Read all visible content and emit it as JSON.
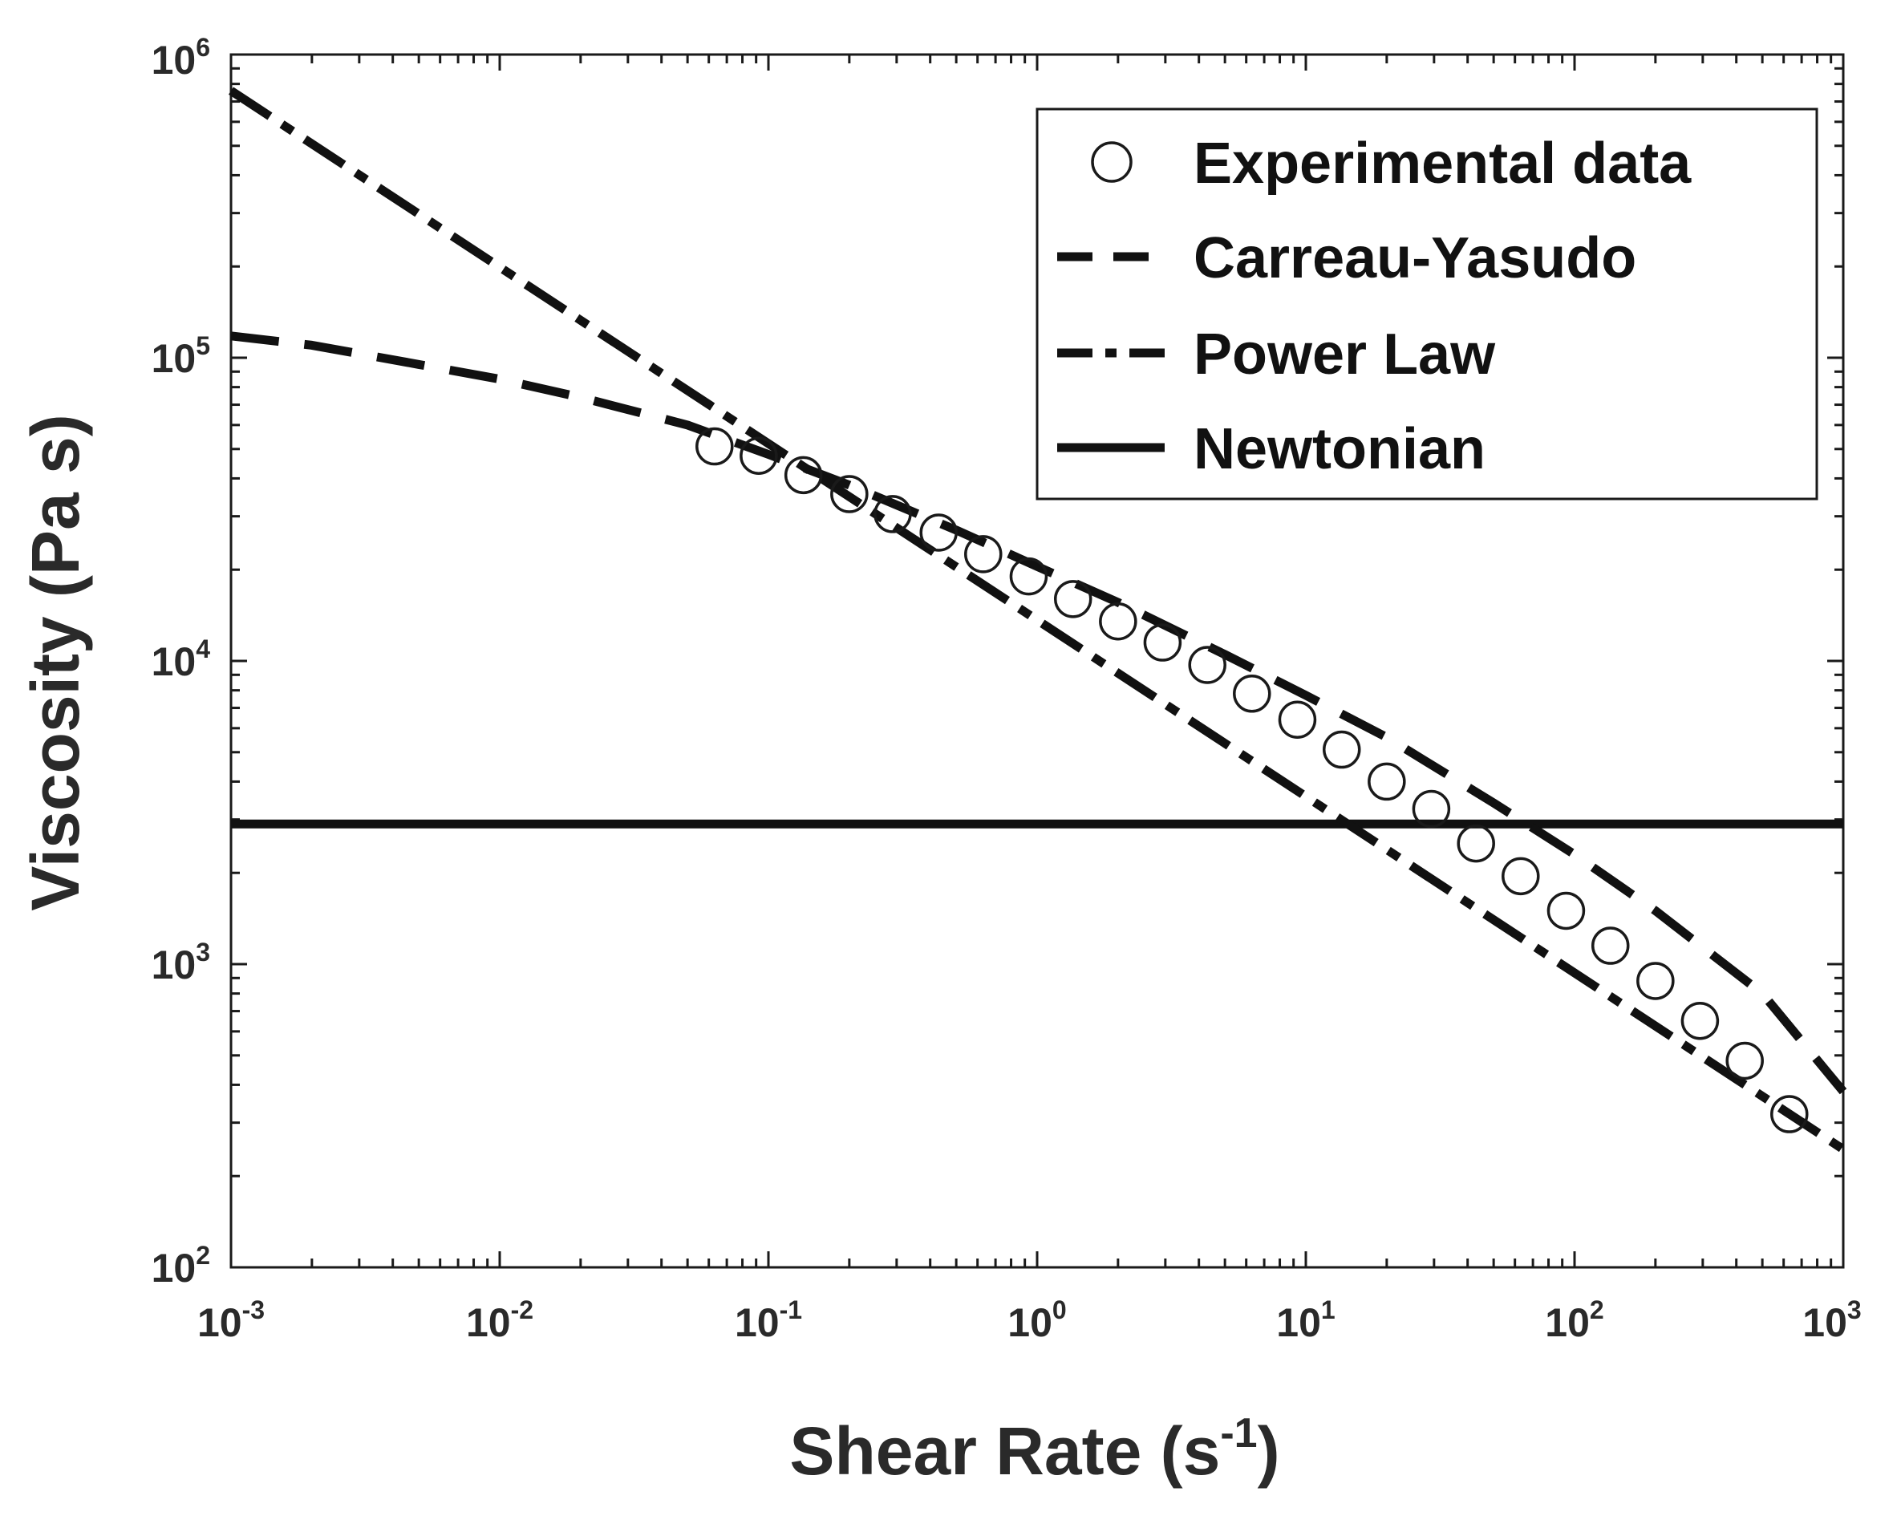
{
  "chart_data": {
    "type": "line",
    "xscale": "log",
    "yscale": "log",
    "xlabel": "Shear Rate (s-1)",
    "xlabel_parts": {
      "main": "Shear Rate (s",
      "sup": "-1",
      "close": ")"
    },
    "ylabel": "Viscosity (Pa s)",
    "xlim": [
      0.001,
      1000
    ],
    "ylim": [
      100,
      1000000
    ],
    "x_ticks": [
      {
        "value": 0.001,
        "base": "10",
        "exp": "-3"
      },
      {
        "value": 0.01,
        "base": "10",
        "exp": "-2"
      },
      {
        "value": 0.1,
        "base": "10",
        "exp": "-1"
      },
      {
        "value": 1,
        "base": "10",
        "exp": "0"
      },
      {
        "value": 10,
        "base": "10",
        "exp": "1"
      },
      {
        "value": 100,
        "base": "10",
        "exp": "2"
      },
      {
        "value": 1000,
        "base": "10",
        "exp": "3"
      }
    ],
    "y_ticks": [
      {
        "value": 100,
        "base": "10",
        "exp": "2"
      },
      {
        "value": 1000,
        "base": "10",
        "exp": "3"
      },
      {
        "value": 10000,
        "base": "10",
        "exp": "4"
      },
      {
        "value": 100000,
        "base": "10",
        "exp": "5"
      },
      {
        "value": 1000000,
        "base": "10",
        "exp": "6"
      }
    ],
    "legend_position": "top-right",
    "series": [
      {
        "name": "Experimental data",
        "style": "circle",
        "x": [
          0.063,
          0.092,
          0.135,
          0.2,
          0.29,
          0.43,
          0.63,
          0.93,
          1.36,
          2.0,
          2.93,
          4.3,
          6.3,
          9.3,
          13.6,
          20,
          29.3,
          43,
          63,
          93,
          136,
          200,
          293,
          430,
          630
        ],
        "y": [
          51000,
          47500,
          41000,
          35500,
          30500,
          26500,
          22500,
          19000,
          16000,
          13500,
          11500,
          9700,
          7800,
          6400,
          5100,
          4000,
          3250,
          2500,
          1950,
          1500,
          1150,
          880,
          650,
          480,
          320
        ]
      },
      {
        "name": "Carreau-Yasudo",
        "style": "dash",
        "x": [
          0.001,
          0.002,
          0.005,
          0.01,
          0.02,
          0.05,
          0.1,
          0.2,
          0.5,
          1,
          2,
          5,
          10,
          20,
          50,
          100,
          200,
          500,
          1000
        ],
        "y": [
          118000,
          110000,
          95000,
          85000,
          74000,
          60000,
          48000,
          38000,
          27000,
          20500,
          15600,
          10500,
          7700,
          5600,
          3400,
          2300,
          1500,
          800,
          380
        ]
      },
      {
        "name": "Power Law",
        "style": "dashdot",
        "x": [
          0.001,
          1000
        ],
        "y": [
          760000,
          245
        ]
      },
      {
        "name": "Newtonian",
        "style": "solid",
        "x": [
          0.001,
          1000
        ],
        "y": [
          2900,
          2900
        ]
      }
    ]
  }
}
